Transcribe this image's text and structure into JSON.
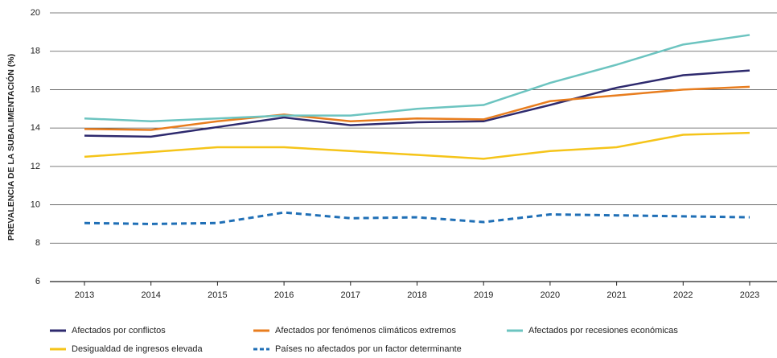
{
  "chart_data": {
    "type": "line",
    "y_label": "PREVALENCIA DE LA SUBALIMENTACIÓN (%)",
    "categories": [
      "2013",
      "2014",
      "2015",
      "2016",
      "2017",
      "2018",
      "2019",
      "2020",
      "2021",
      "2022",
      "2023"
    ],
    "series": [
      {
        "name": "Afectados por conflictos",
        "color": "#2e2a6e",
        "dashed": false,
        "values": [
          13.6,
          13.55,
          14.05,
          14.55,
          14.15,
          14.3,
          14.35,
          15.2,
          16.1,
          16.75,
          17.0
        ]
      },
      {
        "name": "Afectados por fenómenos climáticos extremos",
        "color": "#e87d1e",
        "dashed": false,
        "values": [
          13.95,
          13.9,
          14.35,
          14.7,
          14.35,
          14.5,
          14.45,
          15.4,
          15.7,
          16.0,
          16.15
        ]
      },
      {
        "name": "Afectados por recesiones económicas",
        "color": "#6cc4c0",
        "dashed": false,
        "values": [
          14.5,
          14.35,
          14.5,
          14.65,
          14.65,
          15.0,
          15.2,
          16.35,
          17.3,
          18.35,
          18.85
        ]
      },
      {
        "name": "Desigualdad de ingresos elevada",
        "color": "#f5c419",
        "dashed": false,
        "values": [
          12.5,
          12.75,
          13.0,
          13.0,
          12.8,
          12.6,
          12.4,
          12.8,
          13.0,
          13.65,
          13.75
        ]
      },
      {
        "name": "Países no afectados por un factor determinante",
        "color": "#1f6fb6",
        "dashed": true,
        "values": [
          9.05,
          9.0,
          9.05,
          9.6,
          9.3,
          9.35,
          9.1,
          9.5,
          9.45,
          9.4,
          9.35
        ]
      }
    ],
    "ylim": [
      6,
      20
    ],
    "yticks": [
      6,
      8,
      10,
      12,
      14,
      16,
      18,
      20
    ],
    "grid": true
  }
}
